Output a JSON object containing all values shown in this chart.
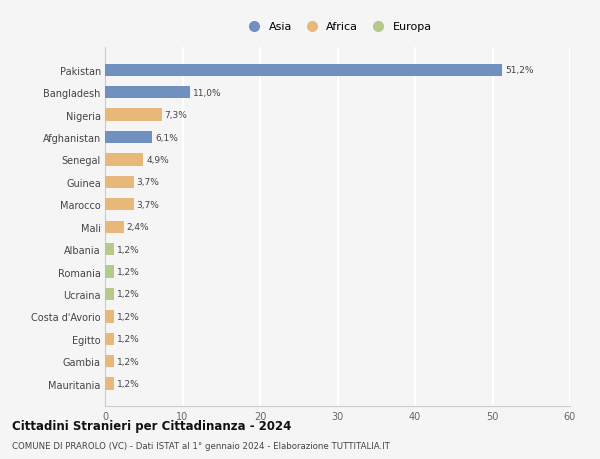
{
  "categories": [
    "Pakistan",
    "Bangladesh",
    "Nigeria",
    "Afghanistan",
    "Senegal",
    "Guinea",
    "Marocco",
    "Mali",
    "Albania",
    "Romania",
    "Ucraina",
    "Costa d'Avorio",
    "Egitto",
    "Gambia",
    "Mauritania"
  ],
  "values": [
    51.2,
    11.0,
    7.3,
    6.1,
    4.9,
    3.7,
    3.7,
    2.4,
    1.2,
    1.2,
    1.2,
    1.2,
    1.2,
    1.2,
    1.2
  ],
  "labels": [
    "51,2%",
    "11,0%",
    "7,3%",
    "6,1%",
    "4,9%",
    "3,7%",
    "3,7%",
    "2,4%",
    "1,2%",
    "1,2%",
    "1,2%",
    "1,2%",
    "1,2%",
    "1,2%",
    "1,2%"
  ],
  "continent": [
    "Asia",
    "Asia",
    "Africa",
    "Asia",
    "Africa",
    "Africa",
    "Africa",
    "Africa",
    "Europa",
    "Europa",
    "Europa",
    "Africa",
    "Africa",
    "Africa",
    "Africa"
  ],
  "colors": {
    "Asia": "#7090bf",
    "Africa": "#e8b87a",
    "Europa": "#b5c98a"
  },
  "legend_labels": [
    "Asia",
    "Africa",
    "Europa"
  ],
  "xlim": [
    0,
    60
  ],
  "xticks": [
    0,
    10,
    20,
    30,
    40,
    50,
    60
  ],
  "title": "Cittadini Stranieri per Cittadinanza - 2024",
  "subtitle": "COMUNE DI PRAROLO (VC) - Dati ISTAT al 1° gennaio 2024 - Elaborazione TUTTITALIA.IT",
  "background_color": "#f5f5f5",
  "grid_color": "#ffffff",
  "bar_height": 0.55
}
